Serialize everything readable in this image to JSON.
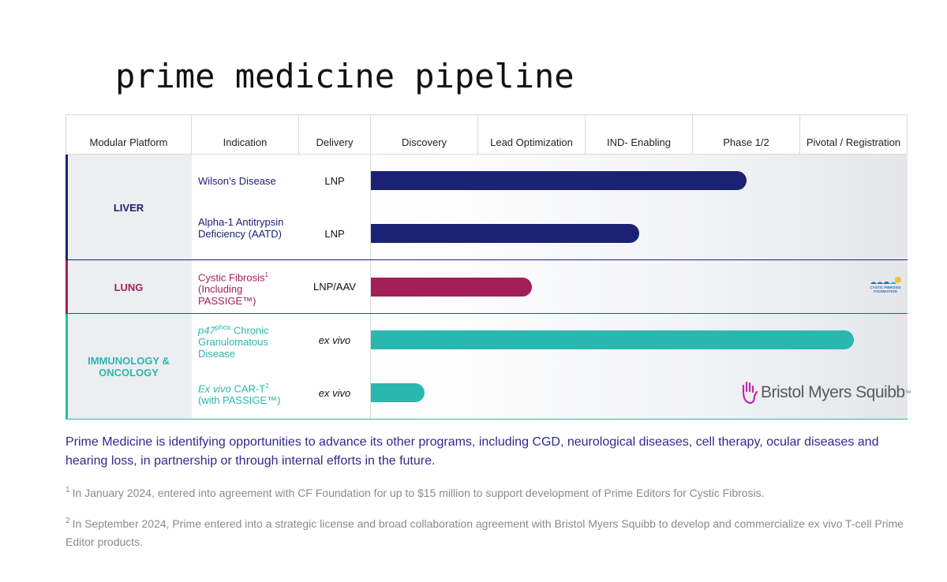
{
  "title": "prime medicine pipeline",
  "colors": {
    "liver": "#1b2173",
    "lung": "#a31f5a",
    "immuno": "#2ab7b0",
    "footer_text": "#2e2a8f",
    "bms_magenta": "#be2bbb"
  },
  "header": {
    "platform": "Modular Platform",
    "indication": "Indication",
    "delivery": "Delivery",
    "stages": [
      "Discovery",
      "Lead Optimization",
      "IND- Enabling",
      "Phase 1/2",
      "Pivotal / Registration"
    ]
  },
  "groups": {
    "liver": {
      "label": "LIVER"
    },
    "lung": {
      "label": "LUNG"
    },
    "immuno": {
      "label": "IMMUNOLOGY & ONCOLOGY"
    }
  },
  "programs": {
    "wilson": {
      "name": "Wilson’s Disease",
      "delivery": "LNP"
    },
    "aatd": {
      "name": "Alpha-1 Antitrypsin Deficiency (AATD)",
      "delivery": "LNP"
    },
    "cf": {
      "name": "Cystic Fibrosis",
      "name_sup": "1",
      "name_rest": "(Including PASSIGE™)",
      "delivery": "LNP/AAV"
    },
    "cgd": {
      "name_italic": "p47",
      "name_sup": "phox",
      "name_rest": " Chronic Granulomatous Disease",
      "delivery": "ex vivo"
    },
    "cart": {
      "name_italic": "Ex vivo",
      "name_mid": " CAR-T",
      "name_sup": "2",
      "name_rest": "(with PASSIGE™)",
      "delivery": "ex vivo"
    }
  },
  "chart_data": {
    "type": "bar",
    "orientation": "horizontal",
    "categories": [
      "Wilson’s Disease",
      "Alpha-1 Antitrypsin Deficiency (AATD)",
      "Cystic Fibrosis (Including PASSIGE™)",
      "p47phox Chronic Granulomatous Disease",
      "Ex vivo CAR-T (with PASSIGE™)"
    ],
    "stages": [
      "Discovery",
      "Lead Optimization",
      "IND- Enabling",
      "Phase 1/2",
      "Pivotal / Registration"
    ],
    "values": [
      3.5,
      2.5,
      1.5,
      4.5,
      0.5
    ],
    "xlim": [
      0,
      5
    ]
  },
  "partners": {
    "cff": "CYSTIC FIBROSIS FOUNDATION",
    "bms": "Bristol Myers Squibb",
    "bms_tm": "™"
  },
  "footer": {
    "main": "Prime Medicine is identifying opportunities to advance its other programs, including CGD, neurological diseases, cell therapy, ocular diseases and hearing loss, in partnership or through internal efforts in the future.",
    "note1_num": "1",
    "note1": "In January 2024, entered into agreement with CF Foundation for up to $15 million to support development of Prime Editors for Cystic Fibrosis.",
    "note2_num": "2",
    "note2": "In September 2024, Prime entered into a strategic license and broad collaboration agreement with Bristol Myers Squibb to develop and commercialize ex vivo T-cell Prime Editor products."
  }
}
